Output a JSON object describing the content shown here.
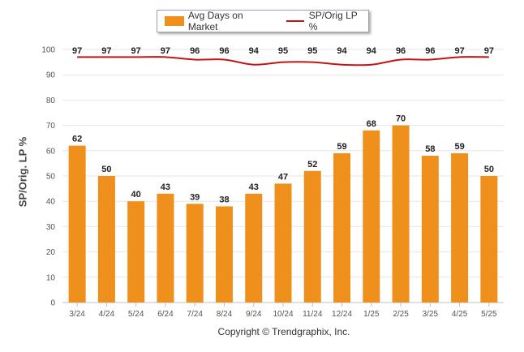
{
  "legend": {
    "bar_label": "Avg Days on Market",
    "line_label": "SP/Orig LP %"
  },
  "footer": {
    "copyright": "Copyright © Trendgraphix, Inc."
  },
  "colors": {
    "bar": "#f0901c",
    "line": "#c41414",
    "grid": "#e6e6e6",
    "axis": "#c0c0c0"
  },
  "chart_data": {
    "type": "bar",
    "title": "",
    "xlabel": "",
    "ylabel": "SP/Orig. LP %",
    "ylim": [
      0,
      100
    ],
    "yticks": [
      0,
      10,
      20,
      30,
      40,
      50,
      60,
      70,
      80,
      90,
      100
    ],
    "grid": true,
    "legend_position": "top-center",
    "categories": [
      "3/24",
      "4/24",
      "5/24",
      "6/24",
      "7/24",
      "8/24",
      "9/24",
      "10/24",
      "11/24",
      "12/24",
      "1/25",
      "2/25",
      "3/25",
      "4/25",
      "5/25"
    ],
    "series": [
      {
        "name": "Avg Days on Market",
        "type": "bar",
        "values": [
          62,
          50,
          40,
          43,
          39,
          38,
          43,
          47,
          52,
          59,
          68,
          70,
          58,
          59,
          50
        ]
      },
      {
        "name": "SP/Orig LP %",
        "type": "line",
        "values": [
          97,
          97,
          97,
          97,
          96,
          96,
          94,
          95,
          95,
          94,
          94,
          96,
          96,
          97,
          97
        ]
      }
    ]
  }
}
